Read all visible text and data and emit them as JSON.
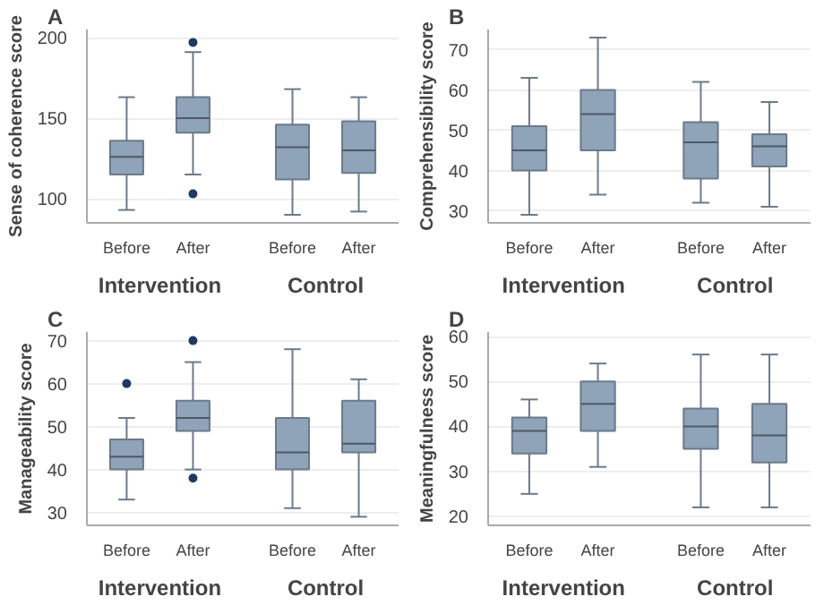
{
  "chart_data": [
    {
      "type": "box",
      "title": "A",
      "ylabel": "Sense of coherence score",
      "categories": [
        "Before",
        "After",
        "Before",
        "After"
      ],
      "annotations": [
        "Intervention",
        "Control"
      ],
      "ylim": [
        85,
        205
      ],
      "yticks": [
        100,
        150,
        200
      ],
      "grid": "y",
      "series": [
        {
          "color": "#8fa3b9",
          "boxes": [
            {
              "low": 93,
              "q1": 115,
              "median": 126,
              "q3": 136,
              "high": 163
            },
            {
              "low": 115,
              "q1": 141,
              "median": 150,
              "q3": 163,
              "high": 191,
              "outliers": [
                197,
                103
              ]
            },
            {
              "low": 90,
              "q1": 112,
              "median": 132,
              "q3": 146,
              "high": 168
            },
            {
              "low": 92,
              "q1": 116,
              "median": 130,
              "q3": 148,
              "high": 163
            }
          ]
        }
      ]
    },
    {
      "type": "box",
      "title": "B",
      "ylabel": "Comprehensibility score",
      "categories": [
        "Before",
        "After",
        "Before",
        "After"
      ],
      "annotations": [
        "Intervention",
        "Control"
      ],
      "ylim": [
        27,
        75
      ],
      "yticks": [
        30,
        40,
        50,
        60,
        70
      ],
      "grid": "y",
      "series": [
        {
          "color": "#8fa3b9",
          "boxes": [
            {
              "low": 29,
              "q1": 40,
              "median": 45,
              "q3": 51,
              "high": 63
            },
            {
              "low": 34,
              "q1": 45,
              "median": 54,
              "q3": 60,
              "high": 73
            },
            {
              "low": 32,
              "q1": 38,
              "median": 47,
              "q3": 52,
              "high": 62
            },
            {
              "low": 31,
              "q1": 41,
              "median": 46,
              "q3": 49,
              "high": 57
            }
          ]
        }
      ]
    },
    {
      "type": "box",
      "title": "C",
      "ylabel": "Manageability score",
      "categories": [
        "Before",
        "After",
        "Before",
        "After"
      ],
      "annotations": [
        "Intervention",
        "Control"
      ],
      "ylim": [
        27,
        72
      ],
      "yticks": [
        30,
        40,
        50,
        60,
        70
      ],
      "grid": "y",
      "series": [
        {
          "color": "#8fa3b9",
          "boxes": [
            {
              "low": 33,
              "q1": 40,
              "median": 43,
              "q3": 47,
              "high": 52,
              "outliers": [
                60
              ]
            },
            {
              "low": 40,
              "q1": 49,
              "median": 52,
              "q3": 56,
              "high": 65,
              "outliers": [
                70,
                38
              ]
            },
            {
              "low": 31,
              "q1": 40,
              "median": 44,
              "q3": 52,
              "high": 68
            },
            {
              "low": 29,
              "q1": 44,
              "median": 46,
              "q3": 56,
              "high": 61
            }
          ]
        }
      ]
    },
    {
      "type": "box",
      "title": "D",
      "ylabel": "Meaningfulness score",
      "categories": [
        "Before",
        "After",
        "Before",
        "After"
      ],
      "annotations": [
        "Intervention",
        "Control"
      ],
      "ylim": [
        18,
        61
      ],
      "yticks": [
        20,
        30,
        40,
        50,
        60
      ],
      "grid": "y",
      "series": [
        {
          "color": "#8fa3b9",
          "boxes": [
            {
              "low": 25,
              "q1": 34,
              "median": 39,
              "q3": 42,
              "high": 46
            },
            {
              "low": 31,
              "q1": 39,
              "median": 45,
              "q3": 50,
              "high": 54
            },
            {
              "low": 22,
              "q1": 35,
              "median": 40,
              "q3": 44,
              "high": 56
            },
            {
              "low": 22,
              "q1": 32,
              "median": 38,
              "q3": 45,
              "high": 56
            }
          ]
        }
      ]
    }
  ]
}
